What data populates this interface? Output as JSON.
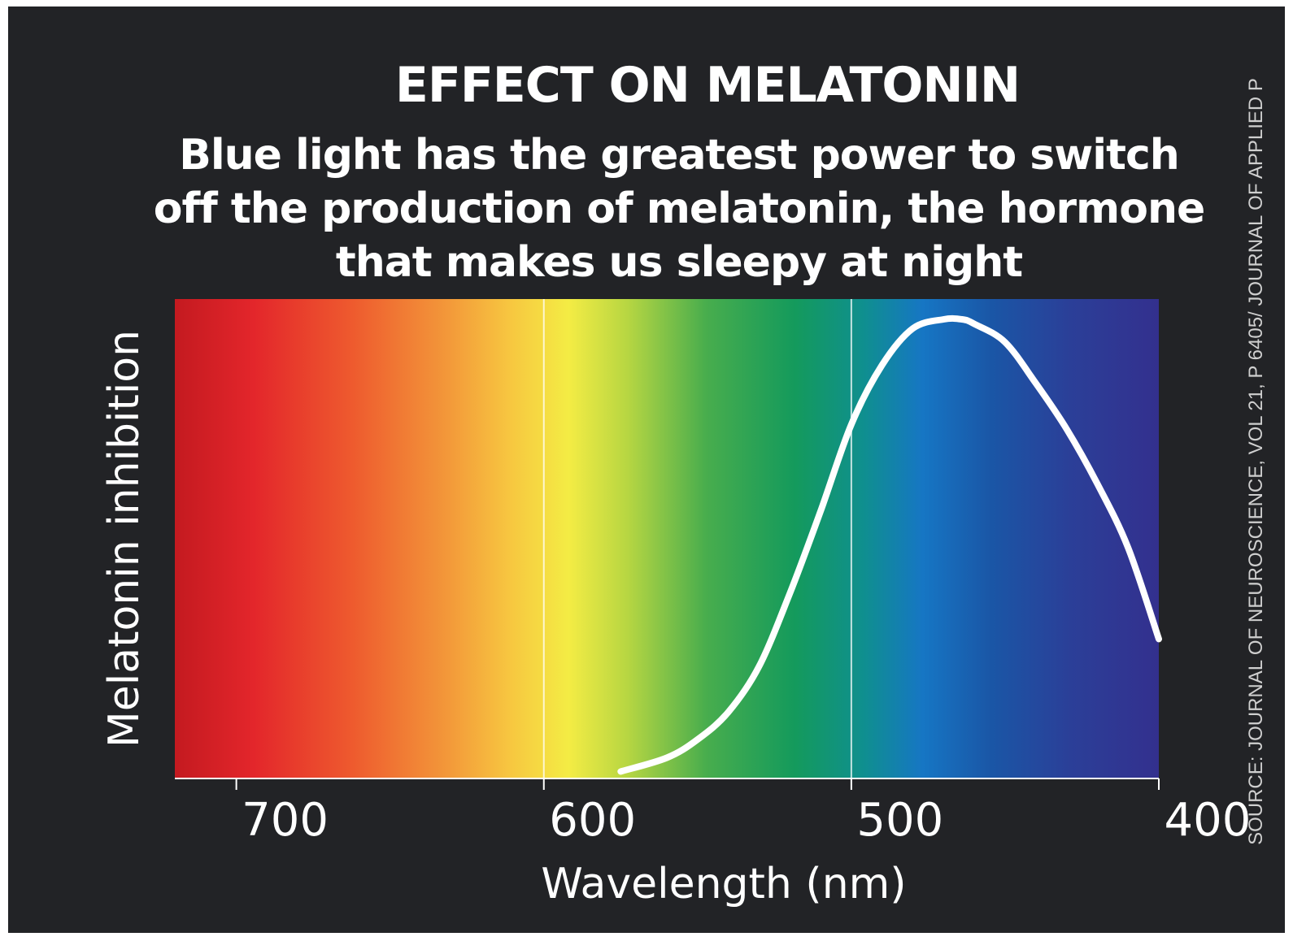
{
  "chart_data": {
    "type": "line",
    "title": "EFFECT ON MELATONIN",
    "subtitle": "Blue light has the greatest power to switch off the production of melatonin, the hormone that makes us sleepy at night",
    "xlabel": "Wavelength (nm)",
    "ylabel": "Melatonin inhibition",
    "x_ticks": [
      700,
      600,
      500,
      400
    ],
    "xlim": [
      720,
      400
    ],
    "ylim": [
      0,
      1
    ],
    "x_reversed": true,
    "background": "visible spectrum gradient",
    "grid": "vertical lines at 600 and 500",
    "series": [
      {
        "color": "#ffffff",
        "x": [
          575,
          560,
          550,
          540,
          530,
          520,
          510,
          500,
          490,
          480,
          470,
          464,
          460,
          450,
          440,
          430,
          420,
          410,
          400
        ],
        "y": [
          0.01,
          0.04,
          0.08,
          0.14,
          0.24,
          0.4,
          0.58,
          0.77,
          0.9,
          0.98,
          1.0,
          1.0,
          0.99,
          0.95,
          0.86,
          0.76,
          0.64,
          0.5,
          0.3
        ]
      }
    ]
  },
  "source": "SOURCE: JOURNAL OF NEUROSCIENCE, VOL 21, P 6405/ JOURNAL OF APPLIED P"
}
